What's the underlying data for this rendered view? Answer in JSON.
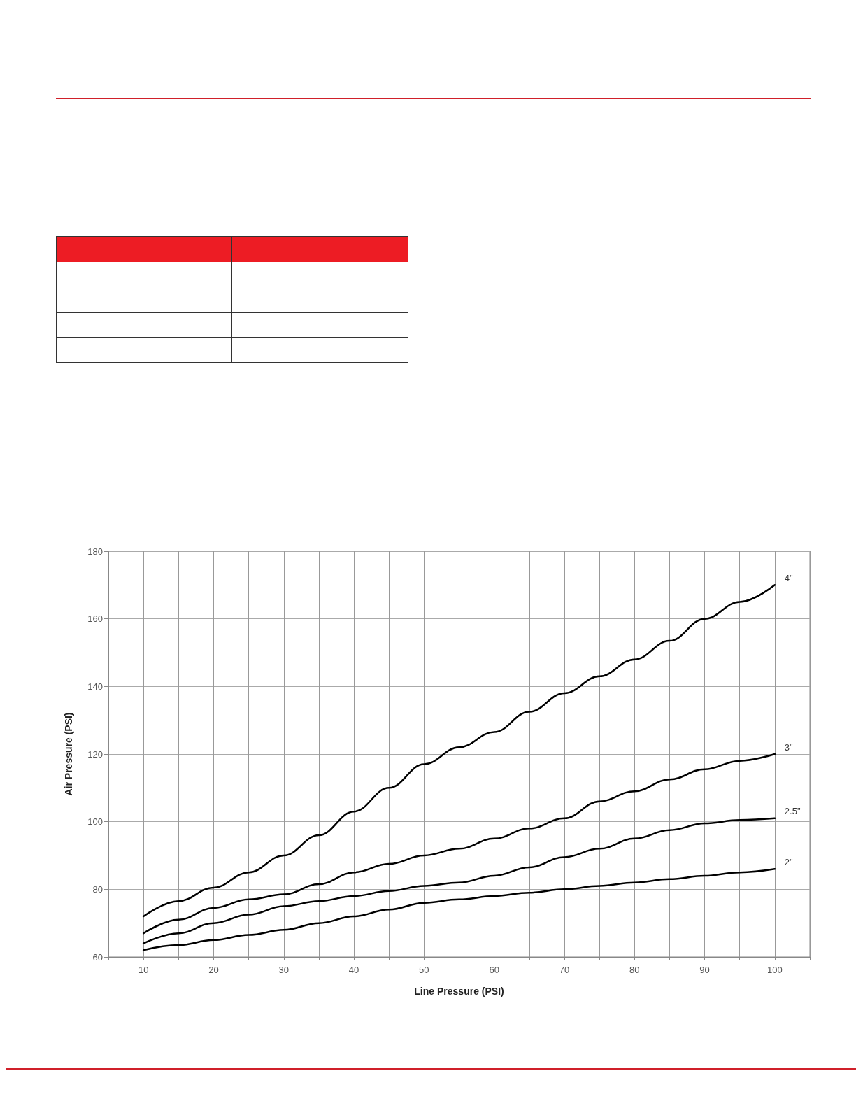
{
  "chart_data": {
    "type": "line",
    "xlabel": "Line Pressure (PSI)",
    "ylabel": "Air Pressure (PSI)",
    "x": [
      10,
      15,
      20,
      25,
      30,
      35,
      40,
      45,
      50,
      55,
      60,
      65,
      70,
      75,
      80,
      85,
      90,
      95,
      100
    ],
    "series": [
      {
        "name": "4\"",
        "color": "#000000",
        "values": [
          72,
          76.5,
          80.5,
          85,
          90,
          96,
          103,
          110,
          117,
          122,
          126.5,
          132.5,
          138,
          143,
          148,
          153.5,
          160,
          165,
          170
        ]
      },
      {
        "name": "3\"",
        "color": "#000000",
        "values": [
          67,
          71,
          74.5,
          77,
          78.5,
          81.5,
          85,
          87.5,
          90,
          92,
          95,
          98,
          101,
          106,
          109,
          112.5,
          115.5,
          118,
          120
        ]
      },
      {
        "name": "2.5\"",
        "color": "#000000",
        "values": [
          64,
          67,
          70,
          72.5,
          75,
          76.5,
          78,
          79.5,
          81,
          82,
          84,
          86.5,
          89.5,
          92,
          95,
          97.5,
          99.5,
          100.5,
          101
        ]
      },
      {
        "name": "2\"",
        "color": "#000000",
        "values": [
          62,
          63.5,
          65,
          66.5,
          68,
          70,
          72,
          74,
          76,
          77,
          78,
          79,
          80,
          81,
          82,
          83,
          84,
          85,
          86
        ]
      }
    ],
    "xlim": [
      5,
      105
    ],
    "xticks": [
      {
        "value": 5,
        "label": null
      },
      10,
      {
        "value": 15,
        "label": null
      },
      20,
      {
        "value": 25,
        "label": null
      },
      30,
      {
        "value": 35,
        "label": null
      },
      40,
      {
        "value": 45,
        "label": null
      },
      50,
      {
        "value": 55,
        "label": null
      },
      60,
      {
        "value": 65,
        "label": null
      },
      70,
      {
        "value": 75,
        "label": null
      },
      80,
      {
        "value": 85,
        "label": null
      },
      90,
      {
        "value": 95,
        "label": null
      },
      100,
      {
        "value": 105,
        "label": null
      }
    ],
    "ylim": [
      60,
      180
    ],
    "yticks": [
      60,
      80,
      100,
      120,
      140,
      160,
      180
    ],
    "grid": true,
    "marker": "none",
    "line_style": "solid",
    "legend": false
  }
}
